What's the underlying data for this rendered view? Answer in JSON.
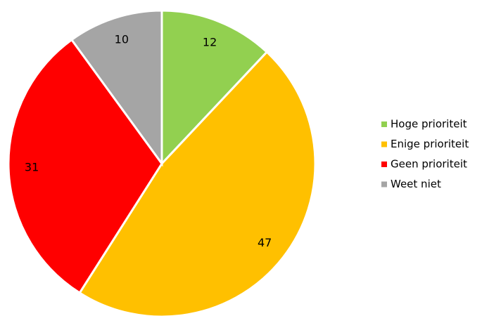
{
  "chart_data": {
    "type": "pie",
    "categories": [
      "Hoge prioriteit",
      "Enige prioriteit",
      "Geen prioriteit",
      "Weet niet"
    ],
    "values": [
      12,
      47,
      31,
      10
    ],
    "colors": [
      "#92d050",
      "#ffc000",
      "#ff0000",
      "#a5a5a5"
    ],
    "legend": "right"
  }
}
